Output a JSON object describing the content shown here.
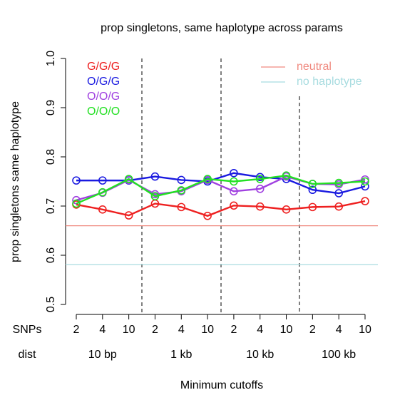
{
  "chart_data": {
    "type": "line",
    "title": "prop singletons, same haplotype across params",
    "x_label": "Minimum cutoffs",
    "y_label": "prop singletons same haplotype",
    "categories": [
      "2",
      "4",
      "10",
      "2",
      "4",
      "10",
      "2",
      "4",
      "10",
      "2",
      "4",
      "10"
    ],
    "row_labels": [
      "SNPs",
      "dist"
    ],
    "groups": [
      "10 bp",
      "1 kb",
      "10 kb",
      "100 kb"
    ],
    "series": [
      {
        "name": "G/G/G",
        "color": "#ee2020",
        "values": [
          0.703,
          0.693,
          0.681,
          0.705,
          0.698,
          0.68,
          0.701,
          0.699,
          0.693,
          0.698,
          0.699,
          0.71
        ]
      },
      {
        "name": "O/G/G",
        "color": "#1a1ae0",
        "values": [
          0.752,
          0.752,
          0.752,
          0.76,
          0.753,
          0.75,
          0.767,
          0.759,
          0.755,
          0.733,
          0.726,
          0.74
        ]
      },
      {
        "name": "O/O/G",
        "color": "#a040e0",
        "values": [
          0.712,
          0.727,
          0.753,
          0.724,
          0.73,
          0.753,
          0.73,
          0.735,
          0.76,
          0.745,
          0.744,
          0.754
        ]
      },
      {
        "name": "O/O/O",
        "color": "#22e022",
        "values": [
          0.705,
          0.728,
          0.755,
          0.72,
          0.732,
          0.755,
          0.75,
          0.755,
          0.762,
          0.745,
          0.747,
          0.75
        ]
      }
    ],
    "reference_lines": [
      {
        "name": "neutral",
        "color": "#f08a80",
        "value": 0.66
      },
      {
        "name": "no haplotype",
        "color": "#a8dce0",
        "value": 0.581
      }
    ],
    "ylim": [
      0.5,
      1.0
    ],
    "yticks": [
      0.5,
      0.6,
      0.7,
      0.8,
      0.9,
      {
        "value": 1,
        "label": "1.0"
      }
    ]
  }
}
